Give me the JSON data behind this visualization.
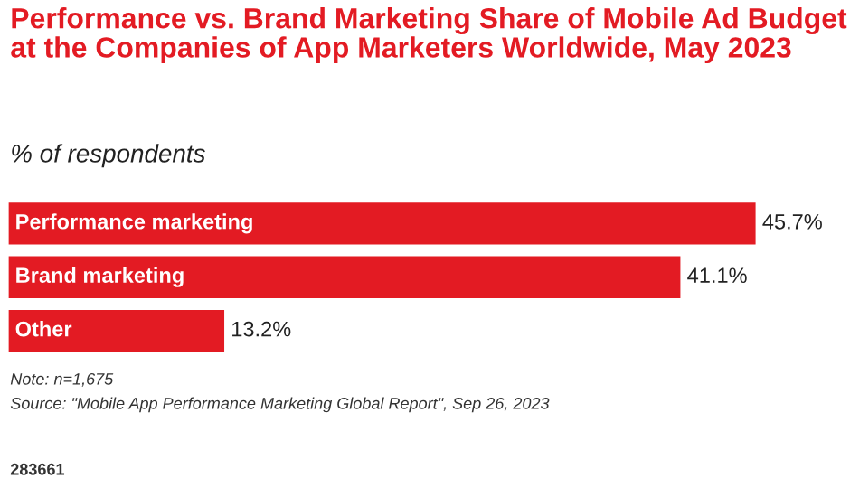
{
  "chart_data": {
    "type": "bar",
    "orientation": "horizontal",
    "title": "Performance vs. Brand Marketing Share of Mobile Ad Budget at the Companies of App Marketers Worldwide, May 2023",
    "subtitle": "% of respondents",
    "categories": [
      "Performance marketing",
      "Brand marketing",
      "Other"
    ],
    "values": [
      45.7,
      41.1,
      13.2
    ],
    "value_labels": [
      "45.7%",
      "41.1%",
      "13.2%"
    ],
    "color": "#e31b23",
    "annotations": [
      "Note: n=1,675",
      "Source: \"Mobile App Performance Marketing Global Report\", Sep 26, 2023",
      "283661"
    ]
  }
}
